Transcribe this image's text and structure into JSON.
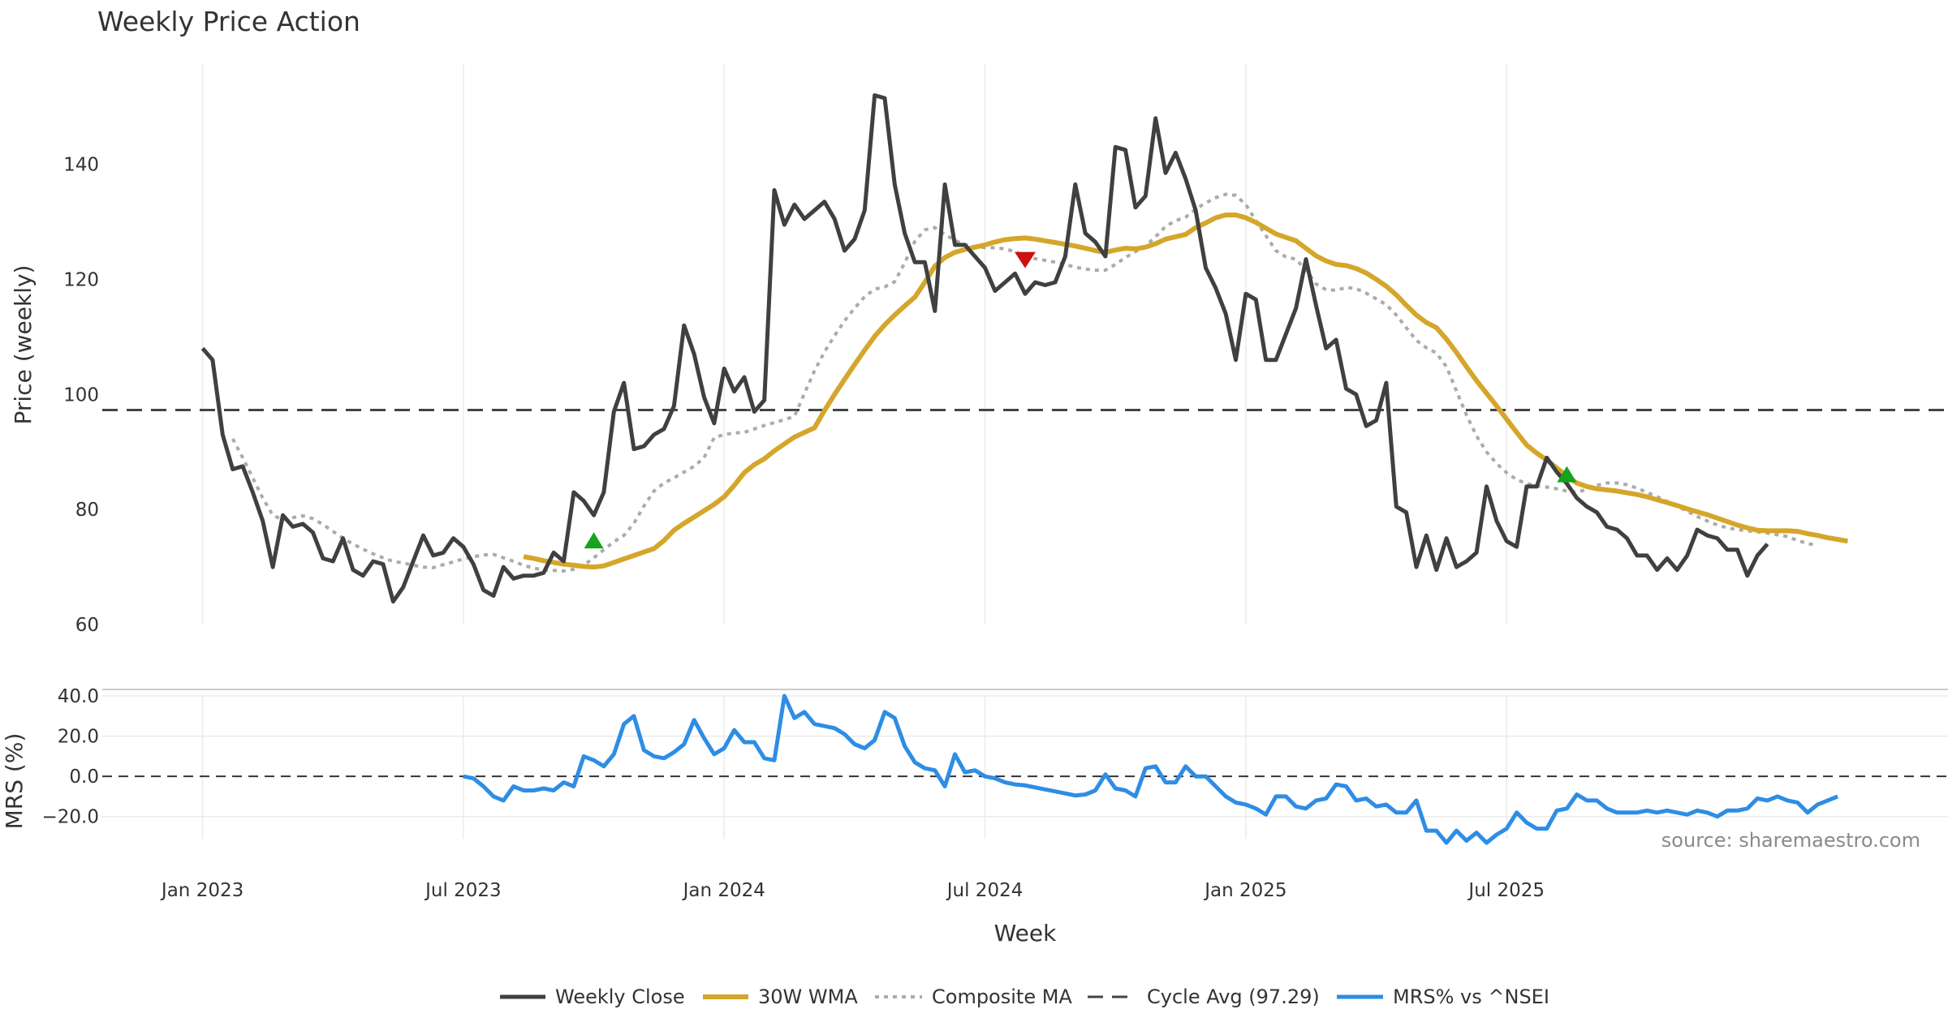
{
  "chart_data": {
    "type": "line",
    "title": "Weekly Price Action",
    "xlabel": "Week",
    "source": "source: sharemaestro.com",
    "x_ticks": [
      "Jan 2023",
      "Jul 2023",
      "Jan 2024",
      "Jul 2024",
      "Jan 2025",
      "Jul 2025"
    ],
    "x_range_week_index": [
      -10,
      174
    ],
    "price_panel": {
      "ylabel": "Price (weekly)",
      "ylim": [
        60,
        157
      ],
      "y_ticks": [
        60,
        80,
        100,
        120,
        140
      ],
      "cycle_avg": 97.29,
      "weekly_close": [
        108,
        106,
        93,
        87,
        87.5,
        83,
        78,
        70,
        79,
        77,
        77.5,
        76,
        71.5,
        71,
        75,
        69.5,
        68.5,
        71,
        70.5,
        64,
        66.5,
        71,
        75.5,
        72,
        72.5,
        75,
        73.5,
        70.5,
        66,
        65,
        70,
        68,
        68.5,
        68.5,
        69,
        72.5,
        71,
        83,
        81.5,
        79,
        83,
        97,
        102,
        90.5,
        91,
        93,
        94,
        98,
        112,
        107,
        99.5,
        95,
        104.5,
        100.5,
        103,
        97,
        99,
        135.5,
        129.5,
        133,
        130.5,
        132,
        133.5,
        130.5,
        125,
        127,
        132,
        152,
        151.5,
        136.5,
        128,
        123,
        123,
        114.5,
        136.5,
        126,
        126,
        124,
        122,
        118,
        119.5,
        121,
        117.5,
        119.5,
        119,
        119.5,
        124,
        136.5,
        128,
        126.5,
        124,
        143,
        142.5,
        132.5,
        134.5,
        148,
        138.5,
        142,
        137.5,
        132,
        122,
        118.5,
        114,
        106,
        117.5,
        116.5,
        106,
        106,
        110.5,
        115,
        123.5,
        115.5,
        108,
        109.5,
        101,
        100,
        94.5,
        95.5,
        102,
        80.5,
        79.5,
        70,
        75.5,
        69.5,
        75,
        70,
        71,
        72.5,
        84,
        78,
        74.5,
        73.5,
        84,
        84,
        89,
        86.5,
        84.5,
        82,
        80.5,
        79.5,
        77,
        76.5,
        75,
        72,
        72,
        69.5,
        71.5,
        69.5,
        72,
        76.5,
        75.5,
        75,
        73,
        73,
        68.5,
        72,
        74
      ],
      "wma_30": {
        "start_index": 32,
        "values": [
          71.8,
          71.5,
          71.1,
          70.8,
          70.5,
          70.3,
          70.1,
          70.0,
          70.2,
          70.8,
          71.4,
          72.0,
          72.6,
          73.2,
          74.6,
          76.4,
          77.6,
          78.7,
          79.8,
          80.9,
          82.2,
          84.2,
          86.4,
          87.8,
          88.8,
          90.2,
          91.4,
          92.6,
          93.4,
          94.2,
          97.2,
          100.0,
          102.6,
          105.2,
          107.7,
          110.1,
          112.1,
          113.8,
          115.4,
          116.9,
          119.5,
          122.3,
          123.8,
          124.7,
          125.2,
          125.6,
          126.0,
          126.5,
          126.9,
          127.1,
          127.2,
          127.0,
          126.7,
          126.4,
          126.1,
          125.8,
          125.4,
          125.0,
          124.7,
          125.1,
          125.4,
          125.3,
          125.6,
          126.2,
          127.0,
          127.4,
          127.8,
          129.0,
          129.8,
          130.7,
          131.2,
          131.2,
          130.7,
          129.9,
          128.9,
          127.9,
          127.3,
          126.7,
          125.4,
          124.1,
          123.2,
          122.6,
          122.4,
          121.9,
          121.1,
          120.0,
          118.8,
          117.3,
          115.5,
          113.8,
          112.5,
          111.6,
          109.6,
          107.3,
          104.8,
          102.4,
          100.2,
          98.0,
          95.7,
          93.4,
          91.2,
          89.8,
          88.6,
          87.2,
          85.8,
          84.6,
          84.0,
          83.6,
          83.4,
          83.2,
          82.9,
          82.6,
          82.2,
          81.7,
          81.2,
          80.7,
          80.1,
          79.6,
          79.1,
          78.5,
          77.9,
          77.3,
          76.8,
          76.4,
          76.3,
          76.3,
          76.3,
          76.2,
          75.8,
          75.5,
          75.1,
          74.8,
          74.5
        ]
      },
      "composite_ma": {
        "start_index": 3,
        "values": [
          92.3,
          89,
          85.5,
          82,
          79,
          78.2,
          78.6,
          78.9,
          78.4,
          77.4,
          76.2,
          75,
          74,
          73.1,
          72.3,
          71.6,
          71,
          70.7,
          70.3,
          70,
          69.9,
          70.4,
          70.9,
          71.4,
          71.8,
          72.1,
          72.2,
          71.6,
          71,
          70.3,
          69.8,
          69.5,
          69.4,
          69.3,
          69.6,
          70.3,
          71.6,
          73,
          74.4,
          75.5,
          77.6,
          80.6,
          83.2,
          84.6,
          85.5,
          86.5,
          87.5,
          89,
          92.5,
          93,
          93.3,
          93.4,
          94,
          94.6,
          95.1,
          95.6,
          96.2,
          100.2,
          104.1,
          107.4,
          110.2,
          112.8,
          115,
          117,
          118.3,
          118.7,
          119.6,
          122.9,
          126.6,
          128.6,
          129,
          127.8,
          126.8,
          126,
          125.7,
          125.5,
          125.5,
          125.3,
          124.8,
          124,
          123.6,
          123.3,
          123,
          122.6,
          122.1,
          121.8,
          121.6,
          121.6,
          122.6,
          123.8,
          124.8,
          125.8,
          127.4,
          129.2,
          130.2,
          130.8,
          132.2,
          133.3,
          134.2,
          134.8,
          134.6,
          133,
          130.2,
          127.6,
          125,
          123.9,
          123.5,
          121.6,
          119.2,
          118.2,
          118.1,
          118.6,
          118.4,
          117.6,
          116.6,
          115.6,
          113.8,
          111.6,
          109.4,
          108.1,
          107.2,
          104.8,
          100.6,
          96.4,
          92.8,
          90,
          88,
          86.4,
          85.2,
          84.5,
          84.1,
          83.9,
          83.6,
          83.2,
          83,
          83.5,
          84.2,
          84.6,
          84.6,
          84.3,
          83.7,
          83,
          82.2,
          81.4,
          80.6,
          79.7,
          78.8,
          78,
          77.3,
          76.8,
          76.5,
          76.3,
          76.1,
          75.9,
          75.6,
          75.3,
          74.6,
          74.1,
          73.7
        ]
      },
      "signals": [
        {
          "week_index": 39,
          "type": "buy",
          "price": 74.5
        },
        {
          "week_index": 82,
          "type": "sell",
          "price": 123.5
        },
        {
          "week_index": 136,
          "type": "buy",
          "price": 86
        }
      ]
    },
    "mrs_panel": {
      "ylabel": "MRS (%)",
      "ylim": [
        -31,
        40
      ],
      "y_ticks": [
        "40.0",
        "20.0",
        "0.0",
        "−20.0"
      ],
      "y_tick_values": [
        40,
        20,
        0,
        -20
      ],
      "series_name": "MRS% vs ^NSEI",
      "start_index": 26,
      "values": [
        0,
        -1,
        -5,
        -10,
        -12,
        -5,
        -7,
        -7,
        -6,
        -7,
        -3,
        -5,
        10,
        8,
        5,
        11,
        26,
        30,
        13,
        10,
        9,
        12,
        16,
        28,
        19,
        11,
        14,
        23,
        17,
        17,
        9,
        8,
        40,
        29,
        32,
        26,
        25,
        24,
        21,
        16,
        14,
        18,
        32,
        29,
        15,
        7,
        4,
        3,
        -5,
        11,
        2,
        3,
        0,
        -1,
        -3,
        -4,
        -4.5,
        -5.5,
        -6.5,
        -7.5,
        -8.5,
        -9.5,
        -9,
        -7,
        1,
        -6,
        -7,
        -10,
        4,
        5,
        -3,
        -3,
        5,
        0,
        0,
        -5,
        -10,
        -13,
        -14,
        -16,
        -19,
        -10,
        -10,
        -15,
        -16,
        -12,
        -11,
        -4,
        -5,
        -12,
        -11,
        -15,
        -14,
        -18,
        -18,
        -12,
        -27,
        -27,
        -33,
        -27,
        -32,
        -28,
        -33,
        -29,
        -26,
        -18,
        -23,
        -26,
        -26,
        -17,
        -16,
        -9,
        -12,
        -12,
        -16,
        -18,
        -18,
        -18,
        -17,
        -18,
        -17,
        -18,
        -19,
        -17,
        -18,
        -20,
        -17,
        -17,
        -16,
        -11,
        -12,
        -10,
        -12,
        -13,
        -18,
        -14,
        -12,
        -10
      ]
    },
    "legend": [
      "Weekly Close",
      "30W WMA",
      "Composite MA",
      "Cycle Avg (97.29)",
      "MRS% vs ^NSEI"
    ],
    "colors": {
      "weekly_close": "#404040",
      "wma": "#d4a62a",
      "composite": "#ababab",
      "cycle": "#444444",
      "mrs": "#2e8de4",
      "buy": "#16a31f",
      "sell": "#cc1111",
      "grid": "#ebebeb",
      "separator": "#cccccc"
    }
  }
}
